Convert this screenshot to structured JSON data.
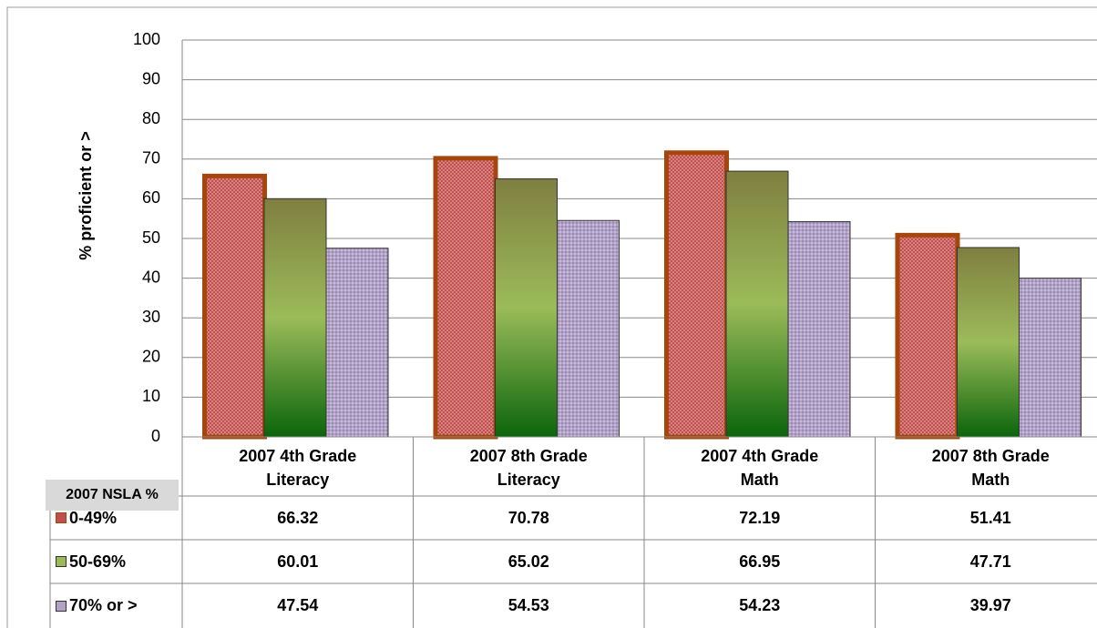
{
  "chart_data": {
    "type": "bar",
    "y_label": "% proficient or >",
    "table_label": "2007 NSLA %",
    "categories": [
      "2007 4th Grade Literacy",
      "2007 8th Grade Literacy",
      "2007 4th Grade Math",
      "2007 8th Grade Math"
    ],
    "series": [
      {
        "name": "0-49%",
        "color": "#c0504d",
        "values": [
          66.32,
          70.78,
          72.19,
          51.41
        ]
      },
      {
        "name": "50-69%",
        "color": "#9bbb59",
        "values": [
          60.01,
          65.02,
          66.95,
          47.71
        ]
      },
      {
        "name": "70% or >",
        "color": "#b3a2c7",
        "values": [
          47.54,
          54.53,
          54.23,
          39.97
        ]
      }
    ],
    "ylim": [
      0,
      100
    ],
    "yticks": [
      0,
      10,
      20,
      30,
      40,
      50,
      60,
      70,
      80,
      90,
      100
    ],
    "grid": true
  }
}
